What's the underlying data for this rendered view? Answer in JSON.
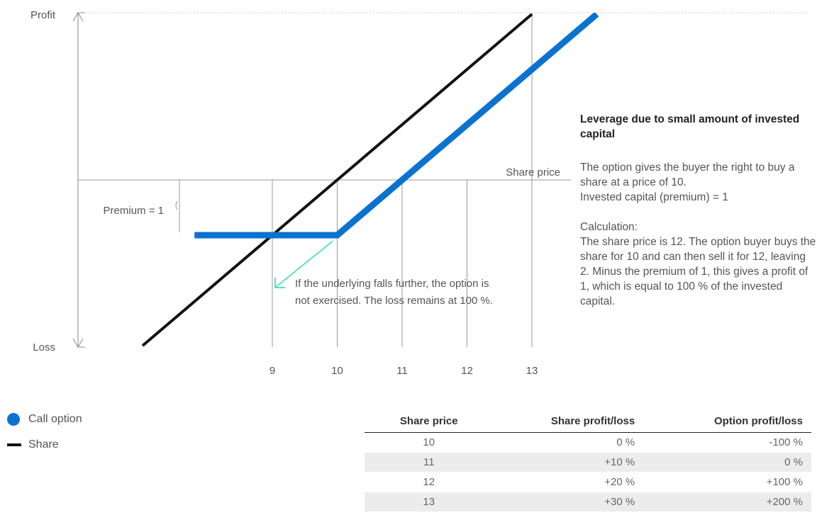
{
  "chart_data": {
    "type": "line",
    "title": "",
    "ylabel_top": "Profit",
    "ylabel_bottom": "Loss",
    "xlabel": "Share price",
    "x_ticks": [
      9,
      10,
      11,
      12,
      13
    ],
    "xlim": [
      6.2,
      13.6
    ],
    "ylim": [
      -2.5,
      2.5
    ],
    "grid": "vertical lines at ticks",
    "series": [
      {
        "name": "Share",
        "color": "#111111",
        "x": [
          7,
          13
        ],
        "y": [
          -3,
          3
        ]
      },
      {
        "name": "Call option",
        "color": "#0c72d0",
        "x": [
          7.8,
          10,
          14
        ],
        "y": [
          -1,
          -1,
          3
        ]
      }
    ],
    "annotations": {
      "premium": "Premium = 1",
      "arrow_note": "If the underlying falls further, the option is not exercised. The loss remains at 100 %."
    }
  },
  "legend": [
    {
      "label": "Call option",
      "icon": "blue-dot"
    },
    {
      "label": "Share",
      "icon": "black-dash"
    }
  ],
  "side_panel": {
    "title": "Leverage due to small amount of invested capital",
    "para1": "The option gives the buyer the right to buy a share at a price of 10.\nInvested capital (premium) = 1",
    "para2": "Calculation:\nThe share price is 12. The option buyer buys the share for 10 and can then sell it for 12, leaving 2. Minus the premium of 1, this gives a profit of 1, which is equal to 100 % of the invested capital."
  },
  "table": {
    "headers": [
      "Share price",
      "Share profit/loss",
      "Option profit/loss"
    ],
    "rows": [
      [
        "10",
        "0 %",
        "-100 %"
      ],
      [
        "11",
        "+10 %",
        "0 %"
      ],
      [
        "12",
        "+20 %",
        "+100 %"
      ],
      [
        "13",
        "+30 %",
        "+200 %"
      ]
    ]
  },
  "colors": {
    "call_option": "#0c72d0",
    "share": "#111111",
    "arrow": "#5ee0b8",
    "grid": "#999999"
  }
}
